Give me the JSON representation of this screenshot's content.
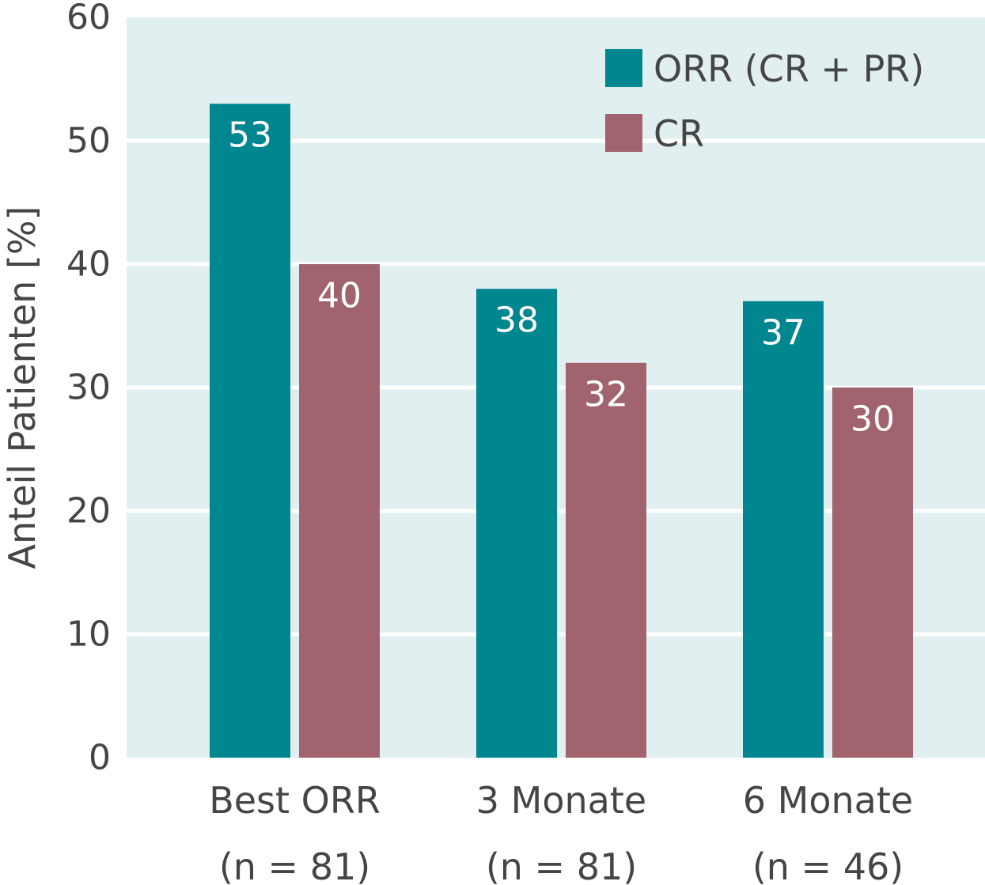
{
  "chart_data": {
    "type": "bar",
    "categories": [
      [
        "Best ORR",
        "(n = 81)"
      ],
      [
        "3 Monate",
        "(n = 81)"
      ],
      [
        "6 Monate",
        "(n = 46)"
      ]
    ],
    "series": [
      {
        "name": "ORR (CR + PR)",
        "values": [
          53,
          38,
          37
        ],
        "color": "#00868f"
      },
      {
        "name": "CR",
        "values": [
          40,
          32,
          30
        ],
        "color": "#a1636d"
      }
    ],
    "title": "",
    "xlabel": "",
    "ylabel": "Anteil Patienten [%]",
    "ylim": [
      0,
      60
    ],
    "yticks": [
      0,
      10,
      20,
      30,
      40,
      50,
      60
    ],
    "grid": true,
    "legend_position": "top-right",
    "colors": {
      "plot_background": "#e2eff1",
      "gridline": "#ffffff",
      "text": "#454545",
      "bar_label": "#ffffff"
    }
  }
}
